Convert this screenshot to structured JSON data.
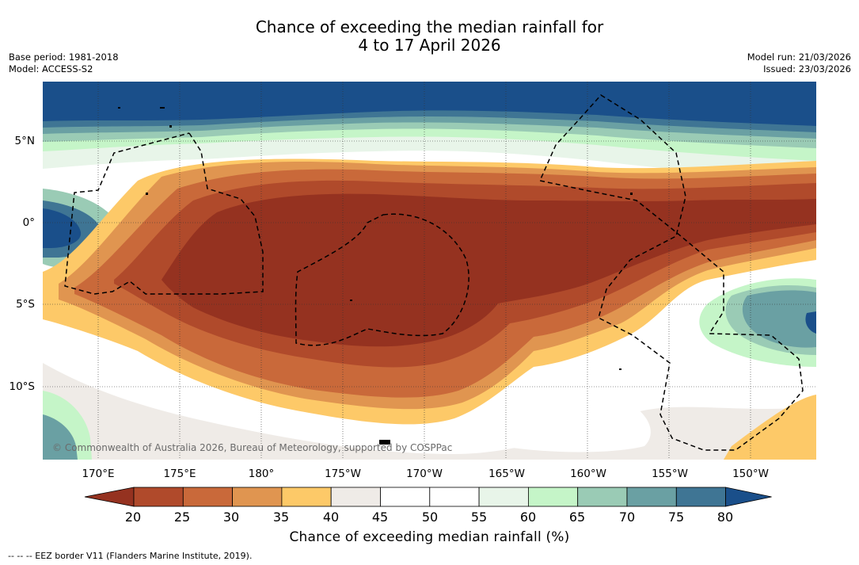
{
  "title": {
    "line1": "Chance of exceeding the median rainfall for",
    "line2": "4 to 17 April 2026"
  },
  "meta": {
    "base_period": "Base period: 1981-2018",
    "model": "Model: ACCESS-S2",
    "model_run": "Model run: 21/03/2026",
    "issued": "Issued: 23/03/2026"
  },
  "map": {
    "lat_labels": [
      "5°N",
      "0°",
      "5°S",
      "10°S"
    ],
    "lon_labels": [
      "170°E",
      "175°E",
      "180°",
      "175°W",
      "170°W",
      "165°W",
      "160°W",
      "155°W",
      "150°W"
    ],
    "copyright": "© Commonwealth of Australia 2026, Bureau of Meteorology, supported by COSPPac"
  },
  "colorbar": {
    "ticks": [
      "20",
      "25",
      "30",
      "35",
      "40",
      "45",
      "50",
      "55",
      "60",
      "65",
      "70",
      "75",
      "80"
    ],
    "label": "Chance of exceeding median rainfall (%)",
    "colors": [
      "#953220",
      "#b04a2b",
      "#c9693a",
      "#e09550",
      "#fdc968",
      "#efebe7",
      "#ffffff",
      "#ffffff",
      "#e8f5e9",
      "#c5f5c8",
      "#9acbb5",
      "#6aa0a3",
      "#3f7594",
      "#1a4f8a"
    ]
  },
  "legend_note": "--  --  -- EEZ border V11 (Flanders Marine Institute, 2019)."
}
